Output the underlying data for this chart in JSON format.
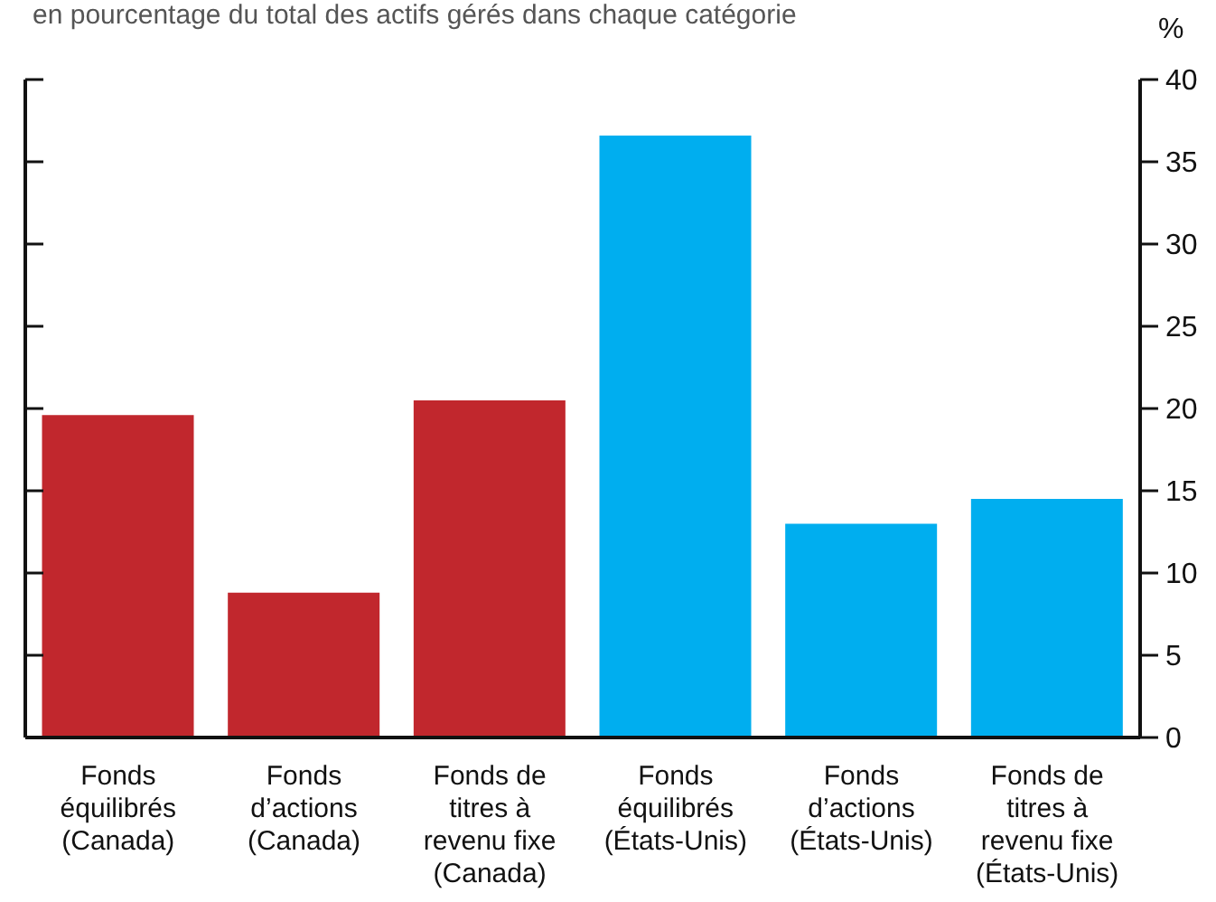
{
  "chart_data": {
    "type": "bar",
    "subtitle": "en pourcentage du total des actifs gérés dans chaque catégorie",
    "ylabel": "%",
    "categories": [
      "Fonds équilibrés (Canada)",
      "Fonds d’actions (Canada)",
      "Fonds de titres à revenu fixe (Canada)",
      "Fonds équilibrés (États-Unis)",
      "Fonds d’actions (États-Unis)",
      "Fonds de titres à revenu fixe (États-Unis)"
    ],
    "values": [
      19.6,
      8.8,
      20.5,
      36.6,
      13.0,
      14.5
    ],
    "colors": [
      "#c1272d",
      "#c1272d",
      "#c1272d",
      "#00aeef",
      "#00aeef",
      "#00aeef"
    ],
    "ylim": [
      0,
      40
    ],
    "yticks": [
      0,
      5,
      10,
      15,
      20,
      25,
      30,
      35,
      40
    ],
    "grid": false,
    "legend": false
  }
}
